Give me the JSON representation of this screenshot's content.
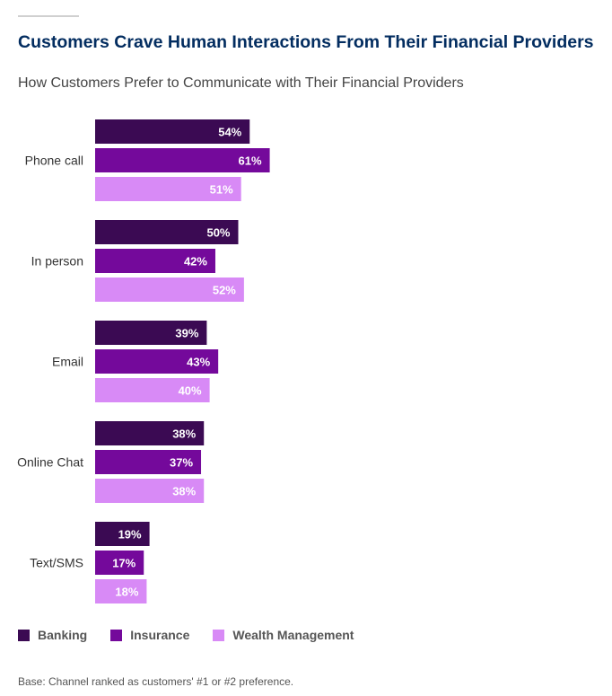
{
  "title": "Customers Crave Human Interactions From Their Financial Providers",
  "subtitle": "How Customers Prefer to Communicate with Their Financial Providers",
  "footnote": "Base: Channel ranked as customers' #1 or #2 preference.",
  "colors": {
    "Banking": "#3b0a53",
    "Insurance": "#74099b",
    "Wealth Management": "#d88af6"
  },
  "legend": [
    "Banking",
    "Insurance",
    "Wealth Management"
  ],
  "chart_data": {
    "type": "bar",
    "orientation": "horizontal",
    "categories": [
      "Phone call",
      "In person",
      "Email",
      "Online Chat",
      "Text/SMS"
    ],
    "series": [
      {
        "name": "Banking",
        "values": [
          54,
          50,
          39,
          38,
          19
        ],
        "labels": [
          "54%",
          "50%",
          "39%",
          "38%",
          "19%"
        ]
      },
      {
        "name": "Insurance",
        "values": [
          61,
          42,
          43,
          37,
          17
        ],
        "labels": [
          "61%",
          "42%",
          "43%",
          "37%",
          "17%"
        ]
      },
      {
        "name": "Wealth Management",
        "values": [
          51,
          52,
          40,
          38,
          18
        ],
        "labels": [
          "51%",
          "52%",
          "40%",
          "38%",
          "18%"
        ]
      }
    ],
    "unit": "%",
    "xlim": [
      0,
      100
    ],
    "grid": false,
    "legend_position": "bottom-left"
  }
}
